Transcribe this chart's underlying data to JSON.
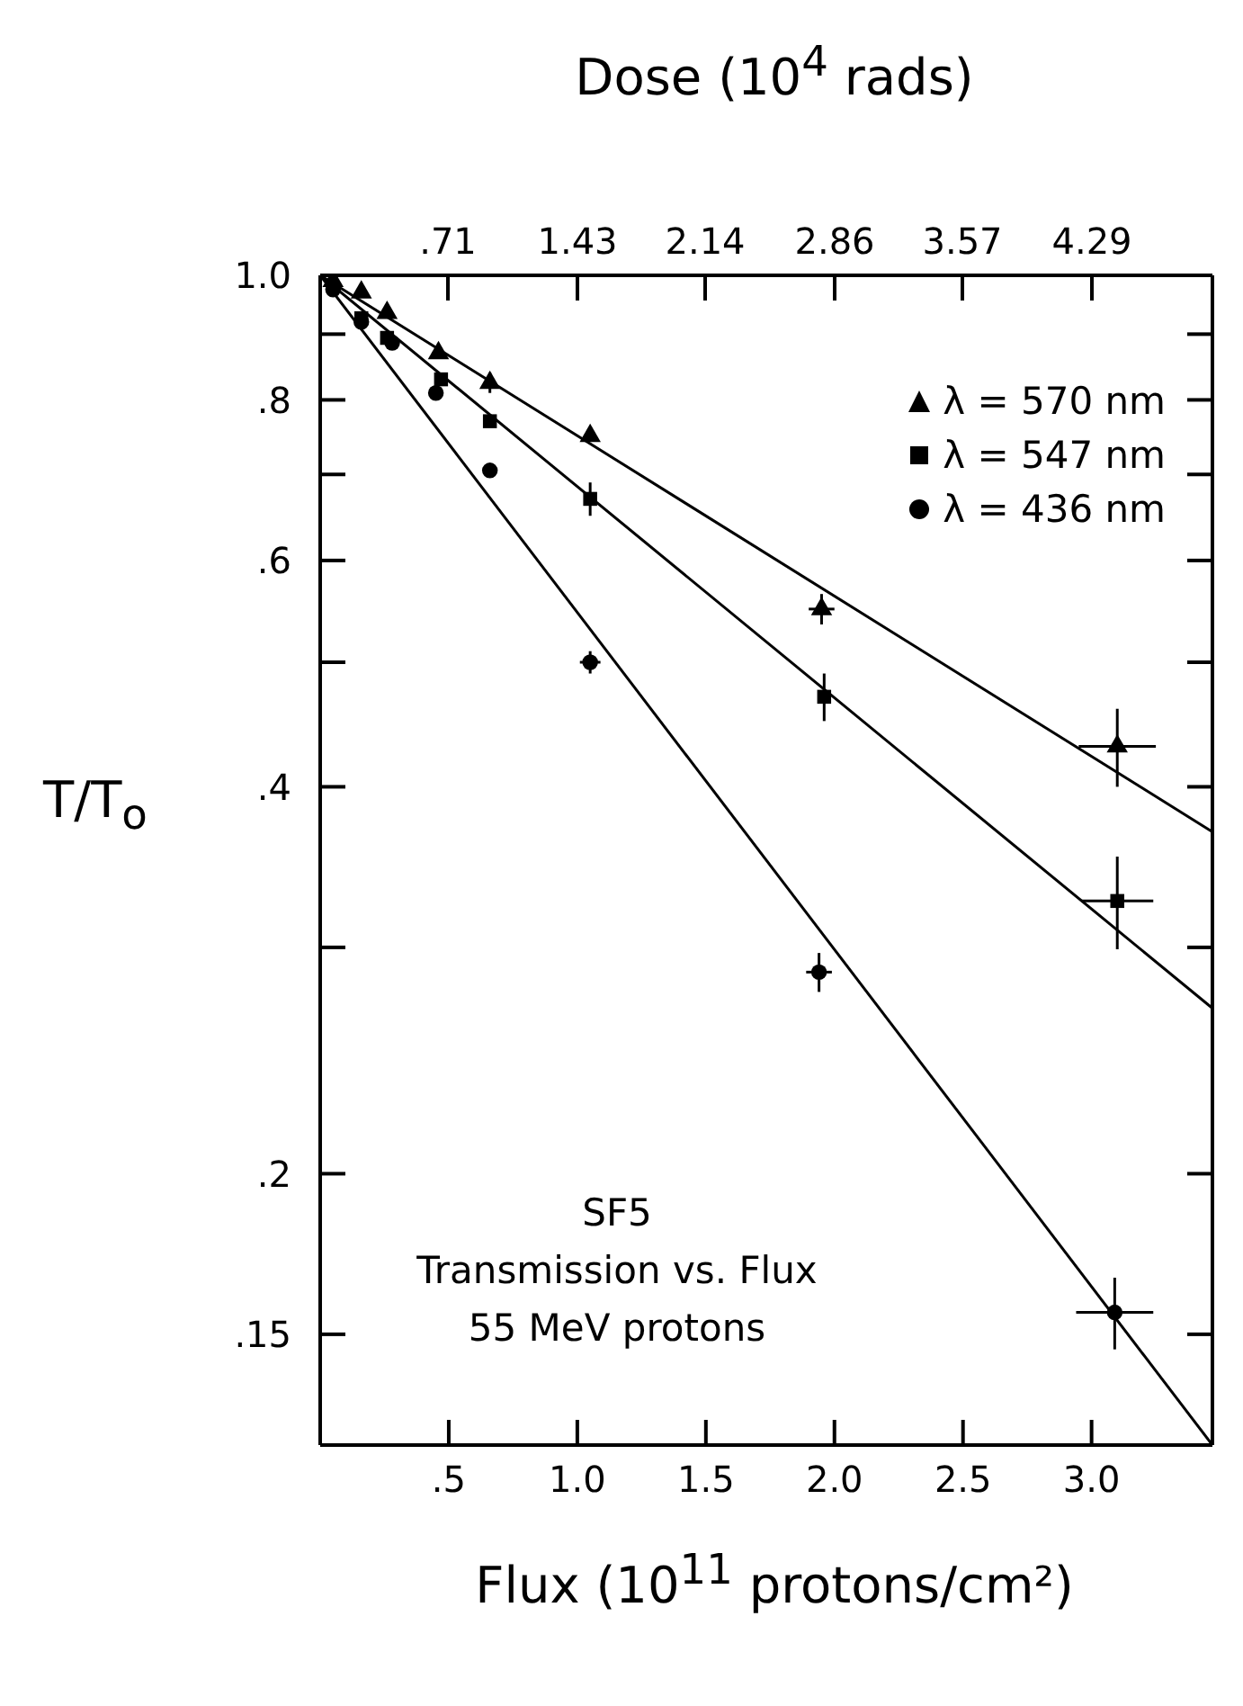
{
  "chart_data": {
    "type": "scatter",
    "xlabel": "Flux (10$^{11}$ protons/cm²)",
    "x2label": "Dose  (10$^{4}$ rads)",
    "ylabel": "T/T$_{o}$",
    "xlim": [
      0,
      3.47
    ],
    "xticks": [
      {
        "value": 0.5,
        "label": ".5"
      },
      {
        "value": 1.0,
        "label": "1.0"
      },
      {
        "value": 1.5,
        "label": "1.5"
      },
      {
        "value": 2.0,
        "label": "2.0"
      },
      {
        "value": 2.5,
        "label": "2.5"
      },
      {
        "value": 3.0,
        "label": "3.0"
      }
    ],
    "x2lim": [
      0,
      4.96
    ],
    "x2ticks": [
      {
        "value": 0.71,
        "label": ".71"
      },
      1.43,
      2.14,
      2.86,
      3.57,
      4.29
    ],
    "ylim": [
      0.123,
      1.0
    ],
    "yticks": [
      {
        "value": 0.15,
        "label": ".15"
      },
      {
        "value": 0.2,
        "label": ".2"
      },
      {
        "value": 0.3,
        "label": null
      },
      {
        "value": 0.4,
        "label": ".4"
      },
      {
        "value": 0.5,
        "label": null
      },
      {
        "value": 0.6,
        "label": ".6"
      },
      {
        "value": 0.7,
        "label": null
      },
      {
        "value": 0.8,
        "label": ".8"
      },
      {
        "value": 0.9,
        "label": null
      },
      {
        "value": 1.0,
        "label": "1.0"
      }
    ],
    "log": "y",
    "legend": "top right",
    "annotations": [
      "SF5",
      "Transmission vs. Flux",
      "55 MeV protons"
    ],
    "series": [
      {
        "name": "λ = 570 nm",
        "type": "scatter",
        "marker": "triangle",
        "color": "#000000",
        "x": [
          0.05,
          0.16,
          0.26,
          0.46,
          0.66,
          1.05,
          1.95,
          3.1
        ],
        "values": [
          0.99,
          0.97,
          0.935,
          0.87,
          0.825,
          0.75,
          0.55,
          0.43
        ],
        "errors": [
          null,
          null,
          null,
          null,
          0.015,
          null,
          0.015,
          0.03
        ],
        "xerrors": [
          null,
          null,
          null,
          null,
          null,
          null,
          0.05,
          0.15
        ]
      },
      {
        "name": "λ = 547 nm",
        "type": "scatter",
        "marker": "square",
        "color": "#000000",
        "x": [
          0.16,
          0.26,
          0.47,
          0.66,
          1.05,
          1.96,
          3.1
        ],
        "values": [
          0.926,
          0.894,
          0.83,
          0.77,
          0.67,
          0.47,
          0.326
        ],
        "errors": [
          null,
          null,
          null,
          null,
          0.02,
          0.02,
          0.027
        ],
        "xerrors": [
          null,
          null,
          null,
          null,
          null,
          null,
          0.14
        ]
      },
      {
        "name": "λ = 436 nm",
        "type": "scatter",
        "marker": "circle",
        "color": "#000000",
        "x": [
          0.05,
          0.16,
          0.28,
          0.45,
          0.66,
          1.05,
          1.94,
          3.09
        ],
        "values": [
          0.975,
          0.92,
          0.886,
          0.81,
          0.705,
          0.5,
          0.287,
          0.156
        ],
        "errors": [
          null,
          null,
          null,
          null,
          null,
          0.01,
          0.01,
          0.01
        ],
        "xerrors": [
          null,
          null,
          null,
          null,
          null,
          0.04,
          0.05,
          0.15
        ]
      },
      {
        "type": "line",
        "marker": "none",
        "line_style": "solid",
        "color": "#000000",
        "x": [
          0,
          3.47
        ],
        "values": [
          1.0,
          0.369
        ]
      },
      {
        "type": "line",
        "marker": "none",
        "line_style": "solid",
        "color": "#000000",
        "x": [
          0,
          3.47
        ],
        "values": [
          1.0,
          0.269
        ]
      },
      {
        "type": "line",
        "marker": "none",
        "line_style": "solid",
        "color": "#000000",
        "x": [
          0,
          3.47
        ],
        "values": [
          1.0,
          0.123
        ]
      }
    ]
  }
}
